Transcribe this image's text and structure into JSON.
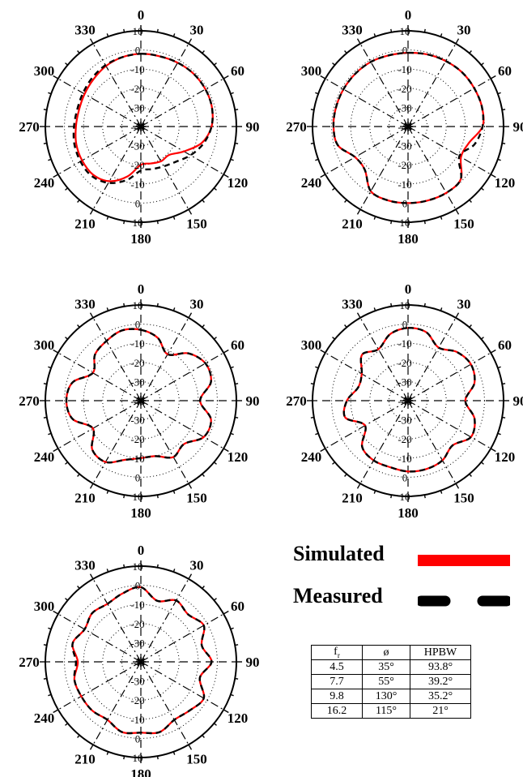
{
  "chart_data": [
    {
      "type": "polar",
      "angle_labels": [
        "0",
        "30",
        "60",
        "90",
        "120",
        "150",
        "180",
        "210",
        "240",
        "270",
        "300",
        "330"
      ],
      "radial_labels": [
        "-40",
        "-30",
        "-20",
        "-10",
        "0",
        "10"
      ],
      "rlim": [
        -40,
        10
      ],
      "grid": true,
      "series": [
        {
          "angles": [
            0,
            15,
            30,
            45,
            60,
            75,
            90,
            105,
            120,
            135,
            150,
            165,
            180,
            195,
            210,
            225,
            240,
            255,
            270,
            285,
            300,
            315,
            330,
            345
          ],
          "values": [
            -2,
            -2,
            -1.5,
            -1,
            -1,
            -1.5,
            -3,
            -7,
            -14,
            -19,
            -19,
            -20,
            -20,
            -13,
            -7,
            -4.5,
            -4.5,
            -5,
            -6,
            -6.5,
            -6,
            -5,
            -3.5,
            -2.5
          ]
        },
        {
          "angles": [
            0,
            15,
            30,
            45,
            60,
            75,
            90,
            105,
            120,
            135,
            150,
            165,
            180,
            195,
            210,
            225,
            240,
            255,
            270,
            285,
            300,
            315,
            330,
            345
          ],
          "values": [
            -2,
            -2,
            -1.5,
            -1,
            -1,
            -1.5,
            -3,
            -6,
            -10,
            -14,
            -16,
            -17,
            -17,
            -11,
            -6,
            -3.5,
            -3.5,
            -4,
            -5,
            -5.5,
            -5,
            -4,
            -3,
            -2.5
          ]
        }
      ]
    },
    {
      "type": "polar",
      "angle_labels": [
        "0",
        "30",
        "60",
        "90",
        "120",
        "150",
        "180",
        "210",
        "240",
        "270",
        "300",
        "330"
      ],
      "radial_labels": [
        "-40",
        "-30",
        "-20",
        "-10",
        "0",
        "10"
      ],
      "rlim": [
        -40,
        10
      ],
      "grid": true,
      "series": [
        {
          "angles": [
            0,
            15,
            30,
            45,
            60,
            75,
            90,
            105,
            120,
            135,
            150,
            165,
            180,
            195,
            210,
            225,
            240,
            255,
            270,
            285,
            300,
            315,
            330,
            345
          ],
          "values": [
            -1.5,
            -1,
            -0.5,
            0,
            0,
            0,
            -1,
            -7,
            -8,
            -1,
            0,
            0,
            0,
            0,
            -1,
            -8,
            -8,
            -2,
            -1,
            -1,
            -1,
            -1,
            -1,
            -1.5
          ]
        },
        {
          "angles": [
            0,
            15,
            30,
            45,
            60,
            75,
            90,
            105,
            120,
            135,
            150,
            165,
            180,
            195,
            210,
            225,
            240,
            255,
            270,
            285,
            300,
            315,
            330,
            345
          ],
          "values": [
            -1.5,
            -1,
            -0.5,
            0,
            0,
            0,
            -1,
            -4,
            -9,
            -1,
            0,
            0,
            0,
            0,
            -1,
            -8,
            -8,
            -2,
            -1,
            -1,
            -1,
            -1,
            -1,
            -1.5
          ]
        }
      ]
    },
    {
      "type": "polar",
      "angle_labels": [
        "0",
        "30",
        "60",
        "90",
        "120",
        "150",
        "180",
        "210",
        "240",
        "270",
        "300",
        "330"
      ],
      "radial_labels": [
        "-40",
        "-30",
        "-20",
        "-10",
        "0",
        "10"
      ],
      "rlim": [
        -40,
        10
      ],
      "grid": true,
      "series": [
        {
          "angles": [
            0,
            15,
            30,
            45,
            60,
            75,
            90,
            105,
            120,
            135,
            150,
            165,
            180,
            195,
            210,
            225,
            240,
            255,
            270,
            285,
            300,
            315,
            330,
            345
          ],
          "values": [
            -3,
            -6,
            -12,
            -5,
            -1,
            -2,
            -9,
            -2,
            -2,
            -8,
            -6,
            -10,
            -10,
            -8,
            -3,
            -4,
            -11,
            -3,
            -1,
            -3,
            -11,
            -6,
            -4,
            -2
          ]
        },
        {
          "angles": [
            0,
            15,
            30,
            45,
            60,
            75,
            90,
            105,
            120,
            135,
            150,
            165,
            180,
            195,
            210,
            225,
            240,
            255,
            270,
            285,
            300,
            315,
            330,
            345
          ],
          "values": [
            -3,
            -6,
            -12,
            -5,
            -1,
            -2,
            -9,
            -2,
            -2,
            -8,
            -6,
            -10,
            -10,
            -8,
            -3,
            -4,
            -11,
            -3,
            -1,
            -3,
            -11,
            -6,
            -4,
            -2
          ]
        }
      ]
    },
    {
      "type": "polar",
      "angle_labels": [
        "0",
        "30",
        "60",
        "90",
        "120",
        "150",
        "180",
        "210",
        "240",
        "270",
        "300",
        "330"
      ],
      "radial_labels": [
        "-40",
        "-30",
        "-20",
        "-10",
        "0",
        "10"
      ],
      "rlim": [
        -40,
        10
      ],
      "grid": true,
      "series": [
        {
          "angles": [
            0,
            15,
            30,
            45,
            60,
            75,
            90,
            105,
            120,
            135,
            150,
            165,
            180,
            195,
            210,
            225,
            240,
            255,
            270,
            285,
            300,
            315,
            330,
            345
          ],
          "values": [
            -2,
            -3,
            -8,
            -4,
            -2,
            -4,
            -10,
            -4,
            -2,
            -7,
            -4,
            -3,
            -3,
            -4,
            -4,
            -6,
            -14,
            -6,
            -8,
            -13,
            -12,
            -6,
            -9,
            -4
          ]
        },
        {
          "angles": [
            0,
            15,
            30,
            45,
            60,
            75,
            90,
            105,
            120,
            135,
            150,
            165,
            180,
            195,
            210,
            225,
            240,
            255,
            270,
            285,
            300,
            315,
            330,
            345
          ],
          "values": [
            -2,
            -3,
            -8,
            -4,
            -2,
            -4,
            -10,
            -4,
            -2,
            -7,
            -4,
            -3,
            -3,
            -4,
            -4,
            -6,
            -14,
            -6,
            -8,
            -13,
            -12,
            -6,
            -9,
            -4
          ]
        }
      ]
    },
    {
      "type": "polar",
      "angle_labels": [
        "0",
        "30",
        "60",
        "90",
        "120",
        "150",
        "180",
        "210",
        "240",
        "270",
        "300",
        "330"
      ],
      "radial_labels": [
        "-40",
        "-30",
        "-20",
        "-10",
        "0",
        "10"
      ],
      "rlim": [
        -40,
        10
      ],
      "grid": true,
      "series": [
        {
          "angles": [
            0,
            15,
            30,
            45,
            60,
            75,
            90,
            105,
            120,
            135,
            150,
            165,
            180,
            195,
            210,
            225,
            240,
            255,
            270,
            285,
            300,
            315,
            330,
            345
          ],
          "values": [
            -1,
            -7,
            -3,
            -5,
            -2,
            -7,
            -3,
            -8,
            -2,
            -4,
            -5,
            -2,
            -3,
            -2,
            -5,
            -4,
            -4,
            -4,
            -7,
            -3,
            -6,
            -4,
            -5,
            -3
          ]
        },
        {
          "angles": [
            0,
            15,
            30,
            45,
            60,
            75,
            90,
            105,
            120,
            135,
            150,
            165,
            180,
            195,
            210,
            225,
            240,
            255,
            270,
            285,
            300,
            315,
            330,
            345
          ],
          "values": [
            -1,
            -7,
            -3,
            -5,
            -2,
            -7,
            -3,
            -8,
            -2,
            -4,
            -5,
            -2,
            -3,
            -2,
            -5,
            -4,
            -4,
            -4,
            -6,
            -3,
            -6,
            -4,
            -5,
            -3
          ]
        }
      ]
    }
  ],
  "legend": {
    "simulated_label": "Simulated",
    "measured_label": "Measured",
    "simulated_color": "#ff0000",
    "measured_color": "#000000"
  },
  "table": {
    "header_f": "f",
    "header_f_sub": "r",
    "header_phi": "ø",
    "header_hpbw": "HPBW",
    "rows": [
      [
        "4.5",
        "35°",
        "93.8°"
      ],
      [
        "7.7",
        "55°",
        "39.2°"
      ],
      [
        "9.8",
        "130°",
        "35.2°"
      ],
      [
        "16.2",
        "115°",
        "21°"
      ]
    ]
  }
}
